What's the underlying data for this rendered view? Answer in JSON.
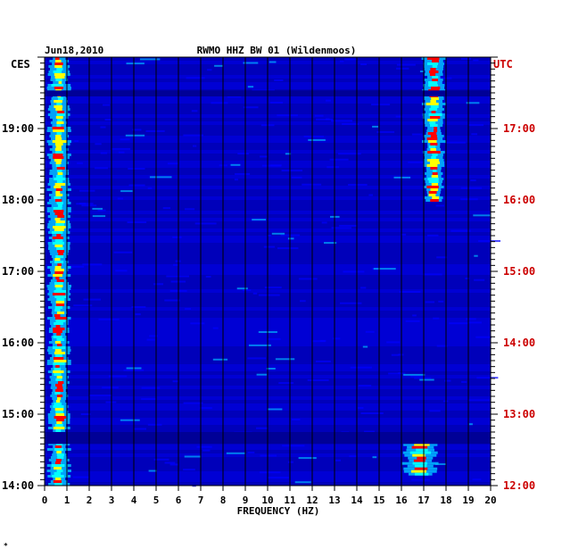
{
  "header": {
    "date": "Jun18,2010",
    "title": "RWMO HHZ BW 01 (Wildenmoos)"
  },
  "chart_data": {
    "type": "heatmap",
    "title": "RWMO HHZ BW 01 (Wildenmoos)",
    "date": "Jun18,2010",
    "xlabel": "FREQUENCY (HZ)",
    "xlim": [
      0,
      20
    ],
    "x_ticks": [
      "0",
      "1",
      "2",
      "3",
      "4",
      "5",
      "6",
      "7",
      "8",
      "9",
      "10",
      "11",
      "12",
      "13",
      "14",
      "15",
      "16",
      "17",
      "18",
      "19",
      "20"
    ],
    "left_axis": {
      "label": "CES",
      "ticks": [
        "14:00",
        "15:00",
        "16:00",
        "17:00",
        "18:00",
        "19:00"
      ],
      "range": [
        "14:00",
        "20:00"
      ]
    },
    "right_axis": {
      "label": "UTC",
      "ticks": [
        "12:00",
        "13:00",
        "14:00",
        "15:00",
        "16:00",
        "17:00"
      ],
      "range": [
        "12:00",
        "18:00"
      ]
    },
    "colormap": [
      "#00008c",
      "#0000ff",
      "#00b4ff",
      "#00ffff",
      "#ffff00",
      "#ff0000"
    ],
    "features": [
      {
        "name": "persistent low-frequency energy",
        "freq_hz": [
          0.1,
          1.2
        ],
        "time_ces": [
          "14:00",
          "20:00"
        ],
        "level": "high"
      },
      {
        "name": "17.5 Hz band (upper)",
        "freq_hz": [
          16.9,
          18.0
        ],
        "time_ces": [
          "18:00",
          "20:00"
        ],
        "level": "high"
      },
      {
        "name": "17.5 Hz band (lower)",
        "freq_hz": [
          15.9,
          17.8
        ],
        "time_ces": [
          "14:10",
          "14:40"
        ],
        "level": "high"
      },
      {
        "name": "quiet gap",
        "freq_hz": [
          0,
          20
        ],
        "time_ces": [
          "14:35",
          "14:45"
        ],
        "level": "low"
      },
      {
        "name": "quiet gap",
        "freq_hz": [
          0,
          20
        ],
        "time_ces": [
          "19:27",
          "19:32"
        ],
        "level": "low"
      }
    ]
  },
  "footer": {
    "mark": "*"
  }
}
